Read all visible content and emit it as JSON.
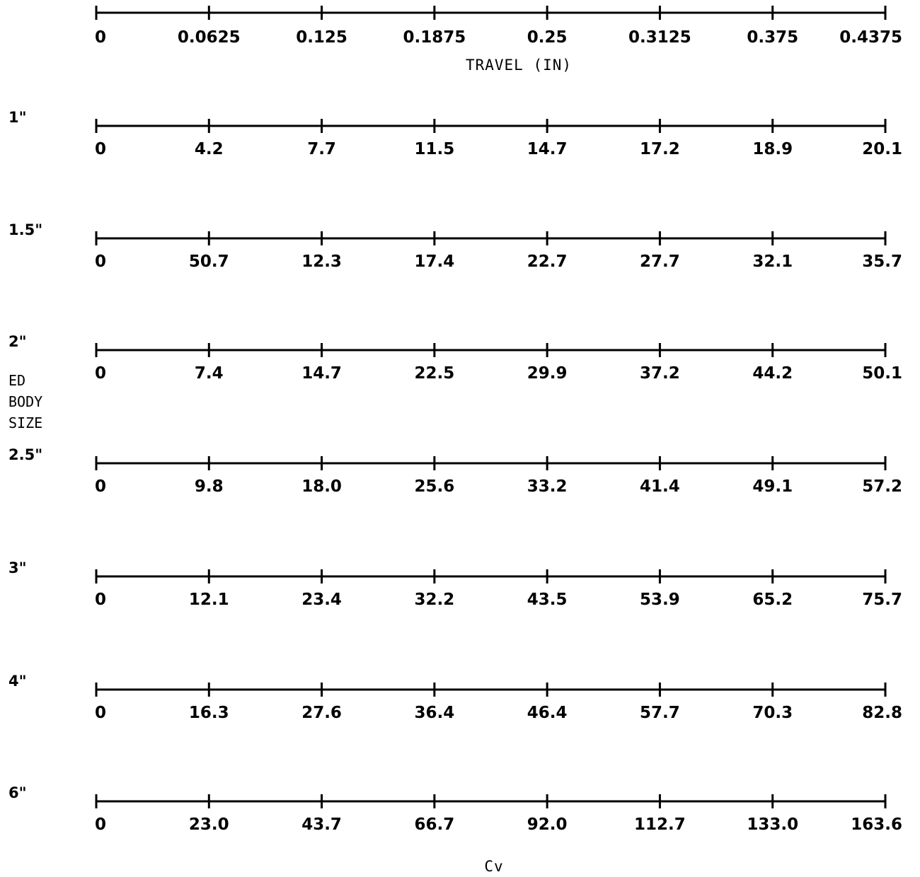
{
  "chart_data": {
    "type": "table",
    "travel_scale": {
      "ticks": [
        "0",
        "0.0625",
        "0.125",
        "0.1875",
        "0.25",
        "0.3125",
        "0.375",
        "0.4375"
      ],
      "title": "TRAVEL (IN)"
    },
    "rows": [
      {
        "size": "1\"",
        "values": [
          "0",
          "4.2",
          "7.7",
          "11.5",
          "14.7",
          "17.2",
          "18.9",
          "20.1"
        ]
      },
      {
        "size": "1.5\"",
        "values": [
          "0",
          "50.7",
          "12.3",
          "17.4",
          "22.7",
          "27.7",
          "32.1",
          "35.7"
        ]
      },
      {
        "size": "2\"",
        "values": [
          "0",
          "7.4",
          "14.7",
          "22.5",
          "29.9",
          "37.2",
          "44.2",
          "50.1"
        ]
      },
      {
        "size": "2.5\"",
        "values": [
          "0",
          "9.8",
          "18.0",
          "25.6",
          "33.2",
          "41.4",
          "49.1",
          "57.2"
        ]
      },
      {
        "size": "3\"",
        "values": [
          "0",
          "12.1",
          "23.4",
          "32.2",
          "43.5",
          "53.9",
          "65.2",
          "75.7"
        ]
      },
      {
        "size": "4\"",
        "values": [
          "0",
          "16.3",
          "27.6",
          "36.4",
          "46.4",
          "57.7",
          "70.3",
          "82.8"
        ]
      },
      {
        "size": "6\"",
        "values": [
          "0",
          "23.0",
          "43.7",
          "66.7",
          "92.0",
          "112.7",
          "133.0",
          "163.6"
        ]
      }
    ],
    "side_label": [
      "ED",
      "BODY",
      "SIZE"
    ],
    "bottom_label": "Cv"
  }
}
